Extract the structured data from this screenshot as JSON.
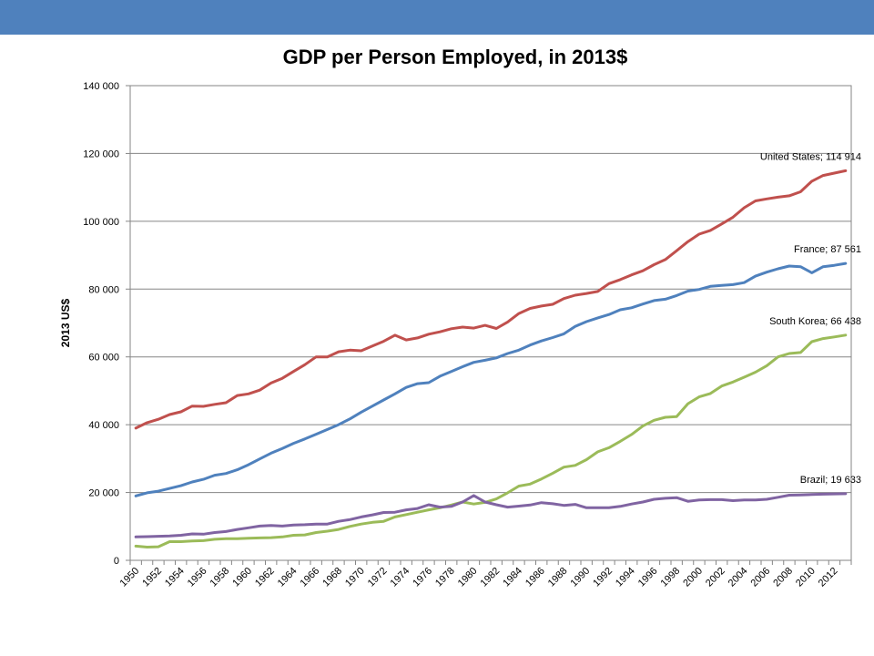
{
  "chart_data": {
    "type": "line",
    "title": "GDP per Person Employed, in 2013$",
    "ylabel": "2013 US$",
    "xlabel": "",
    "ylim": [
      0,
      140000
    ],
    "yticks": [
      0,
      20000,
      40000,
      60000,
      80000,
      100000,
      120000,
      140000
    ],
    "ytick_labels": [
      "0",
      "20 000",
      "40 000",
      "60 000",
      "80 000",
      "100 000",
      "120 000",
      "140 000"
    ],
    "x": [
      1950,
      1951,
      1952,
      1953,
      1954,
      1955,
      1956,
      1957,
      1958,
      1959,
      1960,
      1961,
      1962,
      1963,
      1964,
      1965,
      1966,
      1967,
      1968,
      1969,
      1970,
      1971,
      1972,
      1973,
      1974,
      1975,
      1976,
      1977,
      1978,
      1979,
      1980,
      1981,
      1982,
      1983,
      1984,
      1985,
      1986,
      1987,
      1988,
      1989,
      1990,
      1991,
      1992,
      1993,
      1994,
      1995,
      1996,
      1997,
      1998,
      1999,
      2000,
      2001,
      2002,
      2003,
      2004,
      2005,
      2006,
      2007,
      2008,
      2009,
      2010,
      2011,
      2012,
      2013
    ],
    "xtick_labels": [
      "1950",
      "1952",
      "1954",
      "1956",
      "1958",
      "1960",
      "1962",
      "1964",
      "1966",
      "1968",
      "1970",
      "1972",
      "1974",
      "1976",
      "1978",
      "1980",
      "1982",
      "1984",
      "1986",
      "1988",
      "1990",
      "1992",
      "1994",
      "1996",
      "1998",
      "2000",
      "2002",
      "2004",
      "2006",
      "2008",
      "2010",
      "2012"
    ],
    "grid": "horizontal",
    "series": [
      {
        "name": "United States",
        "color": "#c0504d",
        "end_label": "United States; 114 914",
        "values": [
          39000,
          40600,
          41600,
          43000,
          43800,
          45500,
          45400,
          46000,
          46500,
          48600,
          49100,
          50200,
          52300,
          53700,
          55700,
          57700,
          60000,
          60000,
          61500,
          62000,
          61800,
          63200,
          64600,
          66400,
          65000,
          65600,
          66700,
          67400,
          68300,
          68800,
          68500,
          69300,
          68400,
          70300,
          72800,
          74300,
          75000,
          75500,
          77200,
          78200,
          78700,
          79300,
          81600,
          82800,
          84200,
          85400,
          87200,
          88700,
          91300,
          94000,
          96200,
          97300,
          99200,
          101200,
          104000,
          106000,
          106600,
          107100,
          107500,
          108700,
          111800,
          113500,
          114200,
          114914
        ]
      },
      {
        "name": "France",
        "color": "#4f81bd",
        "end_label": "France; 87 561",
        "values": [
          19000,
          19900,
          20400,
          21200,
          22000,
          23100,
          23900,
          25100,
          25600,
          26700,
          28200,
          29900,
          31600,
          33000,
          34500,
          35800,
          37200,
          38600,
          40000,
          41700,
          43700,
          45500,
          47300,
          49100,
          51000,
          52100,
          52400,
          54300,
          55700,
          57100,
          58400,
          59000,
          59700,
          61000,
          62000,
          63500,
          64700,
          65700,
          66800,
          69000,
          70400,
          71500,
          72500,
          73900,
          74500,
          75600,
          76600,
          77000,
          78100,
          79400,
          79900,
          80800,
          81100,
          81300,
          81900,
          83800,
          85000,
          86000,
          86800,
          86600,
          84800,
          86600,
          87000,
          87561
        ]
      },
      {
        "name": "South Korea",
        "color": "#9bbb59",
        "end_label": "South Korea; 66 438",
        "values": [
          4200,
          3900,
          4000,
          5500,
          5500,
          5700,
          5800,
          6200,
          6400,
          6400,
          6500,
          6600,
          6700,
          6900,
          7400,
          7500,
          8200,
          8600,
          9100,
          10000,
          10700,
          11200,
          11500,
          12800,
          13500,
          14200,
          14900,
          15500,
          16300,
          17200,
          16600,
          17100,
          18100,
          19900,
          21900,
          22500,
          24000,
          25700,
          27500,
          28000,
          29700,
          32000,
          33200,
          35100,
          37100,
          39600,
          41300,
          42200,
          42400,
          46200,
          48200,
          49200,
          51400,
          52600,
          54000,
          55500,
          57400,
          60000,
          61000,
          61300,
          64500,
          65400,
          65900,
          66438
        ]
      },
      {
        "name": "Brazil",
        "color": "#8064a2",
        "end_label": "Brazil; 19 633",
        "values": [
          6900,
          7000,
          7100,
          7200,
          7400,
          7800,
          7700,
          8200,
          8500,
          9100,
          9600,
          10100,
          10300,
          10100,
          10400,
          10500,
          10700,
          10700,
          11500,
          12000,
          12800,
          13400,
          14100,
          14200,
          14900,
          15300,
          16400,
          15700,
          15900,
          17200,
          19100,
          17200,
          16400,
          15700,
          16000,
          16300,
          17000,
          16700,
          16200,
          16500,
          15500,
          15500,
          15500,
          15900,
          16600,
          17200,
          18000,
          18300,
          18500,
          17400,
          17800,
          17900,
          17900,
          17600,
          17800,
          17800,
          18000,
          18600,
          19200,
          19300,
          19400,
          19500,
          19600,
          19633
        ]
      }
    ]
  }
}
